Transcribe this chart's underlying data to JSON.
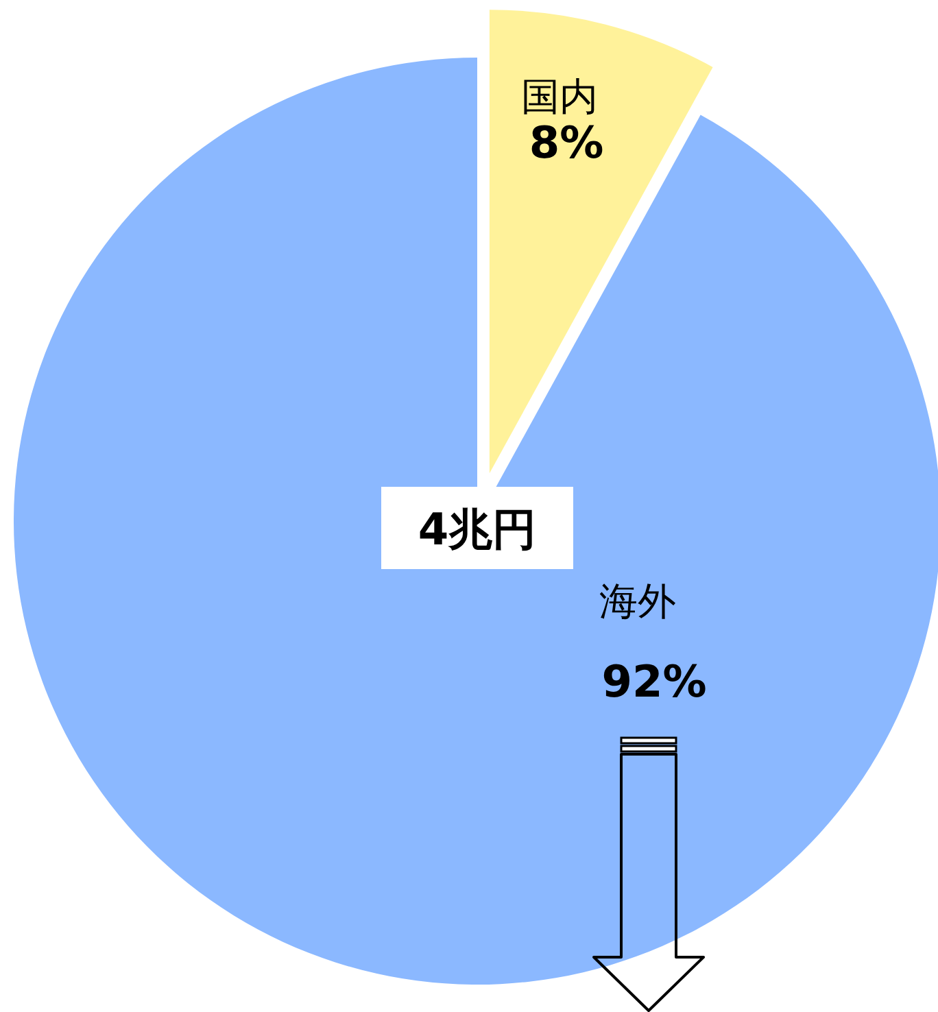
{
  "chart_data": {
    "type": "pie",
    "categories": [
      "国内",
      "海外"
    ],
    "values": [
      8,
      92
    ],
    "colors": [
      "#fff29a",
      "#8bb8ff"
    ],
    "value_labels": [
      "8%",
      "92%"
    ],
    "annotations": [
      "4兆円"
    ]
  }
}
